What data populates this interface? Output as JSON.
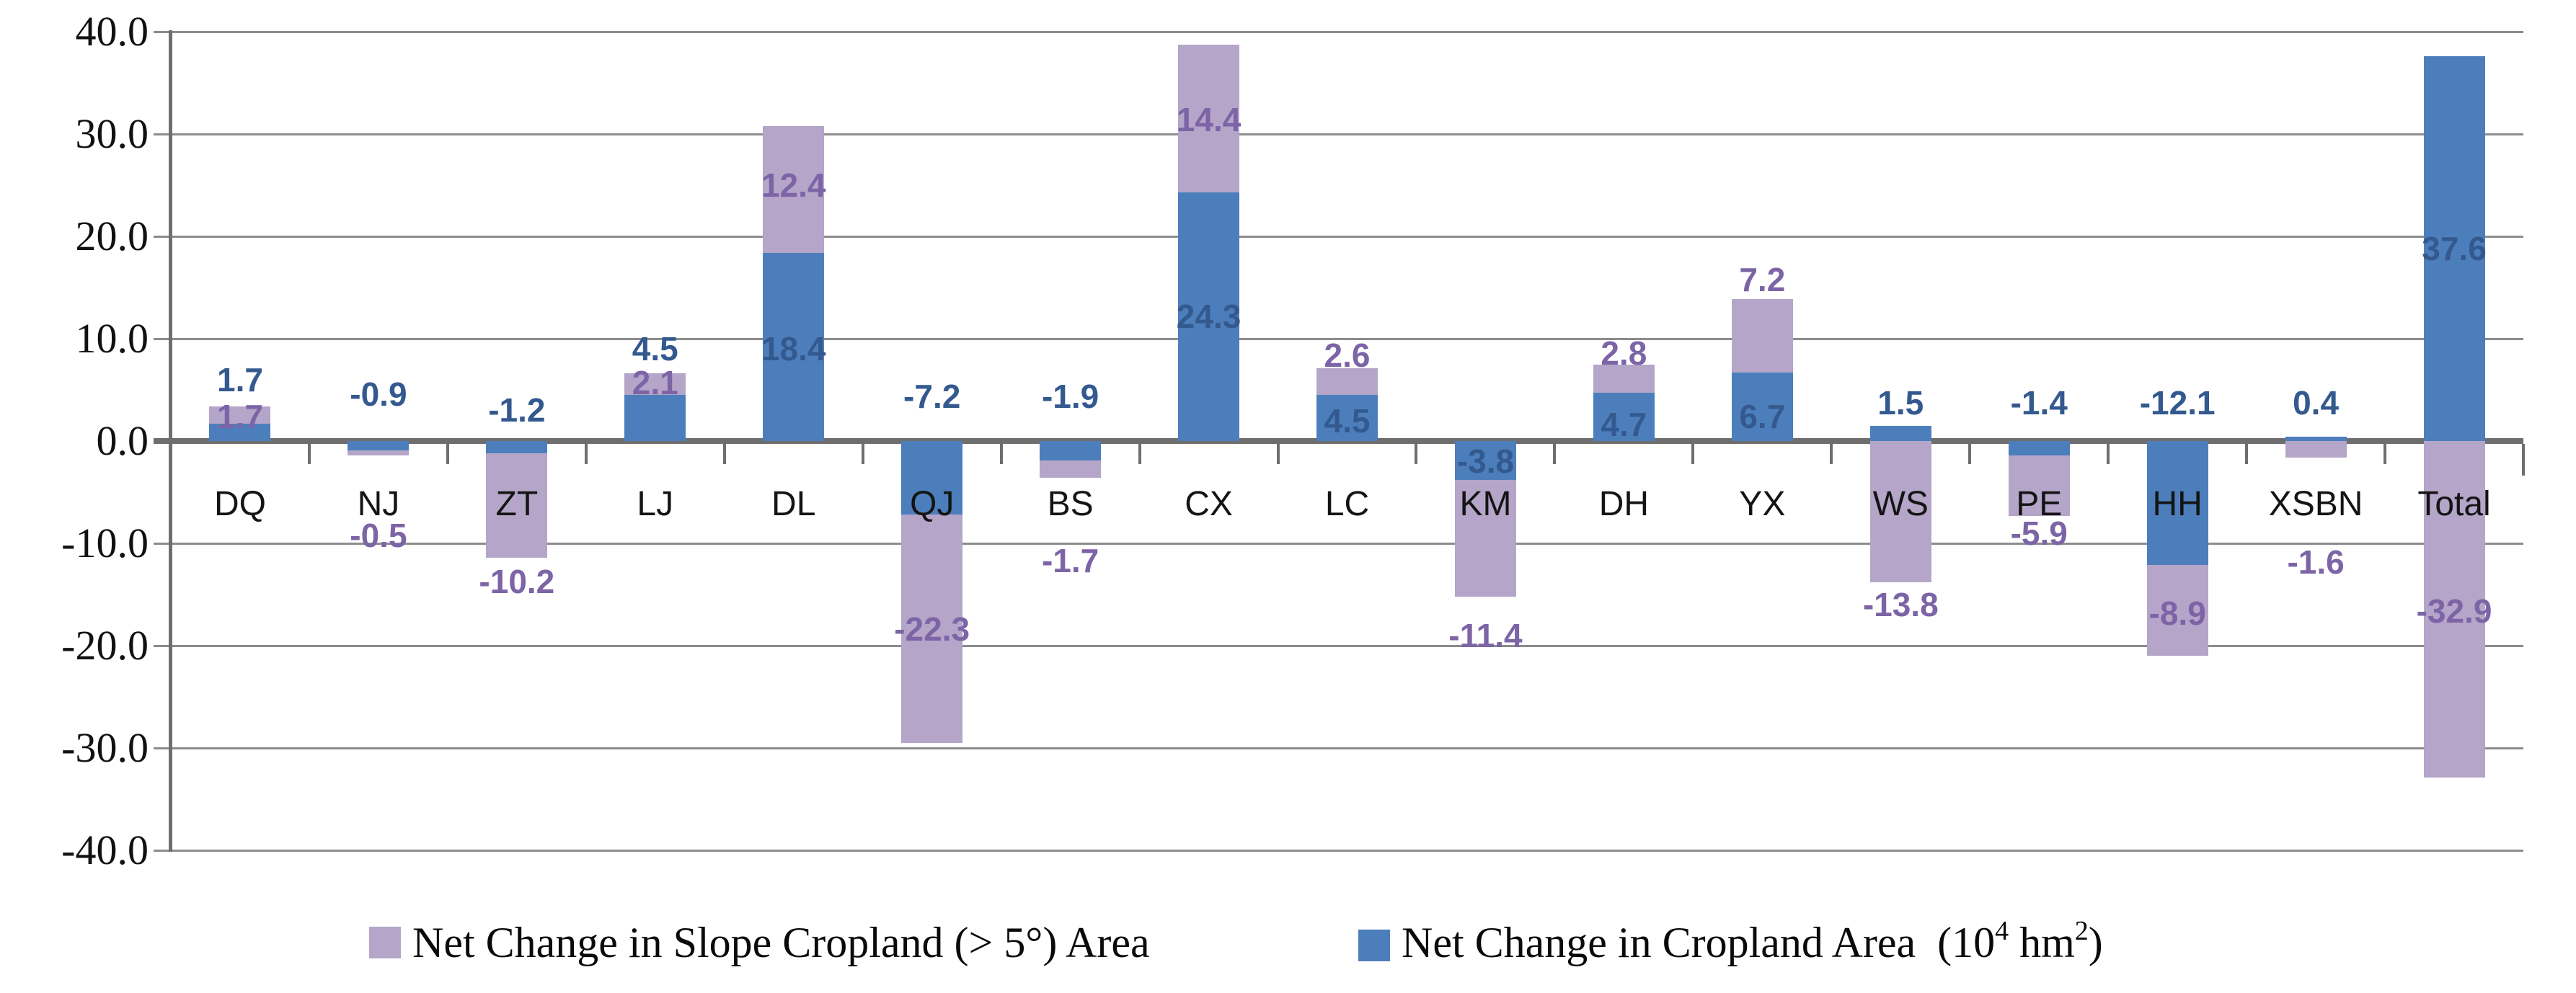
{
  "chart_data": {
    "type": "bar",
    "stacked": true,
    "title": "",
    "xlabel": "",
    "ylabel": "",
    "categories": [
      "DQ",
      "NJ",
      "ZT",
      "LJ",
      "DL",
      "QJ",
      "BS",
      "CX",
      "LC",
      "KM",
      "DH",
      "YX",
      "WS",
      "PE",
      "HH",
      "XSBN",
      "Total"
    ],
    "series": [
      {
        "name": "Net Change in Cropland Area (10⁴ hm²)",
        "key": "cropland-area",
        "color": "#4d7ebc",
        "label_color": "#33598f",
        "values": [
          1.7,
          -0.9,
          -1.2,
          4.5,
          18.4,
          -7.2,
          -1.9,
          24.3,
          4.5,
          -3.8,
          4.7,
          6.7,
          1.5,
          -1.4,
          -12.1,
          0.4,
          37.6
        ]
      },
      {
        "name": "Net Change in Slope Cropland (> 5°) Area",
        "key": "slope-cropland-area",
        "color": "#b4a5c9",
        "label_color": "#7c64a6",
        "values": [
          1.7,
          -0.5,
          -10.2,
          2.1,
          12.4,
          -22.3,
          -1.7,
          14.4,
          2.6,
          -11.4,
          2.8,
          7.2,
          -13.8,
          -5.9,
          -8.9,
          -1.6,
          -32.9
        ]
      }
    ],
    "y_axis": {
      "min": -40,
      "max": 40,
      "step": 10,
      "ticks": [
        "40.0",
        "30.0",
        "20.0",
        "10.0",
        "0.0",
        "-10.0",
        "-20.0",
        "-30.0",
        "-40.0"
      ],
      "values": [
        40,
        30,
        20,
        10,
        0,
        -10,
        -20,
        -30,
        -40
      ]
    },
    "grid": true,
    "legend_position": "bottom",
    "legend": [
      {
        "label": "Net Change in Slope Cropland (> 5°) Area",
        "color": "#b4a5c9"
      },
      {
        "label": "Net Change in Cropland Area  (10⁴ hm²)",
        "color": "#4d7ebc",
        "label_parts": {
          "pre": "Net Change in Cropland Area  (10",
          "sup1": "4",
          "mid": " hm",
          "sup2": "2",
          "post": ")"
        }
      }
    ],
    "style": {
      "grid_color": "#8c8c8c",
      "axis_color": "#6e6e6e",
      "background": "#ffffff"
    }
  }
}
